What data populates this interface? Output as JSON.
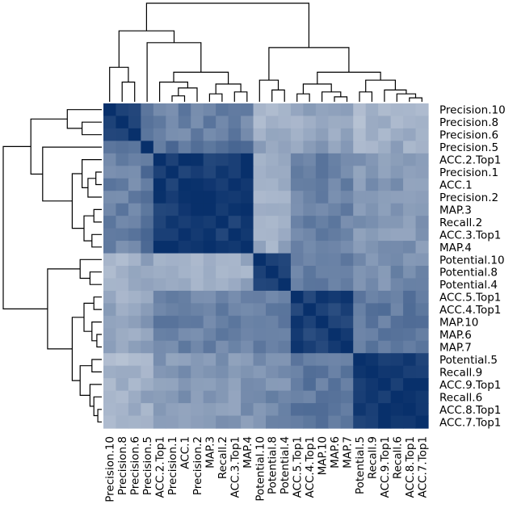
{
  "chart_data": {
    "type": "heatmap",
    "labels": [
      "Precision.10",
      "Precision.8",
      "Precision.6",
      "Precision.5",
      "ACC.2.Top1",
      "Precision.1",
      "ACC.1",
      "Precision.2",
      "MAP.3",
      "Recall.2",
      "ACC.3.Top1",
      "MAP.4",
      "Potential.10",
      "Potential.8",
      "Potential.4",
      "ACC.5.Top1",
      "ACC.4.Top1",
      "MAP.10",
      "MAP.6",
      "MAP.7",
      "Potential.5",
      "Recall.9",
      "ACC.9.Top1",
      "Recall.6",
      "ACC.8.Top1",
      "ACC.7.Top1"
    ],
    "groups": [
      0,
      0,
      0,
      1,
      2,
      2,
      2,
      2,
      2,
      2,
      2,
      2,
      3,
      3,
      3,
      4,
      4,
      4,
      4,
      4,
      5,
      5,
      5,
      5,
      5,
      5
    ],
    "group_similarity": [
      [
        0.95,
        0.65,
        0.55,
        0.3,
        0.35,
        0.3
      ],
      [
        0.65,
        0.95,
        0.65,
        0.35,
        0.4,
        0.35
      ],
      [
        0.55,
        0.65,
        0.95,
        0.35,
        0.55,
        0.45
      ],
      [
        0.3,
        0.35,
        0.35,
        0.95,
        0.55,
        0.5
      ],
      [
        0.35,
        0.4,
        0.55,
        0.55,
        0.9,
        0.6
      ],
      [
        0.3,
        0.35,
        0.45,
        0.5,
        0.6,
        0.95
      ]
    ],
    "color_low": "#ffffff",
    "color_high": "#08306b",
    "dendrogram": true,
    "legend": false
  }
}
